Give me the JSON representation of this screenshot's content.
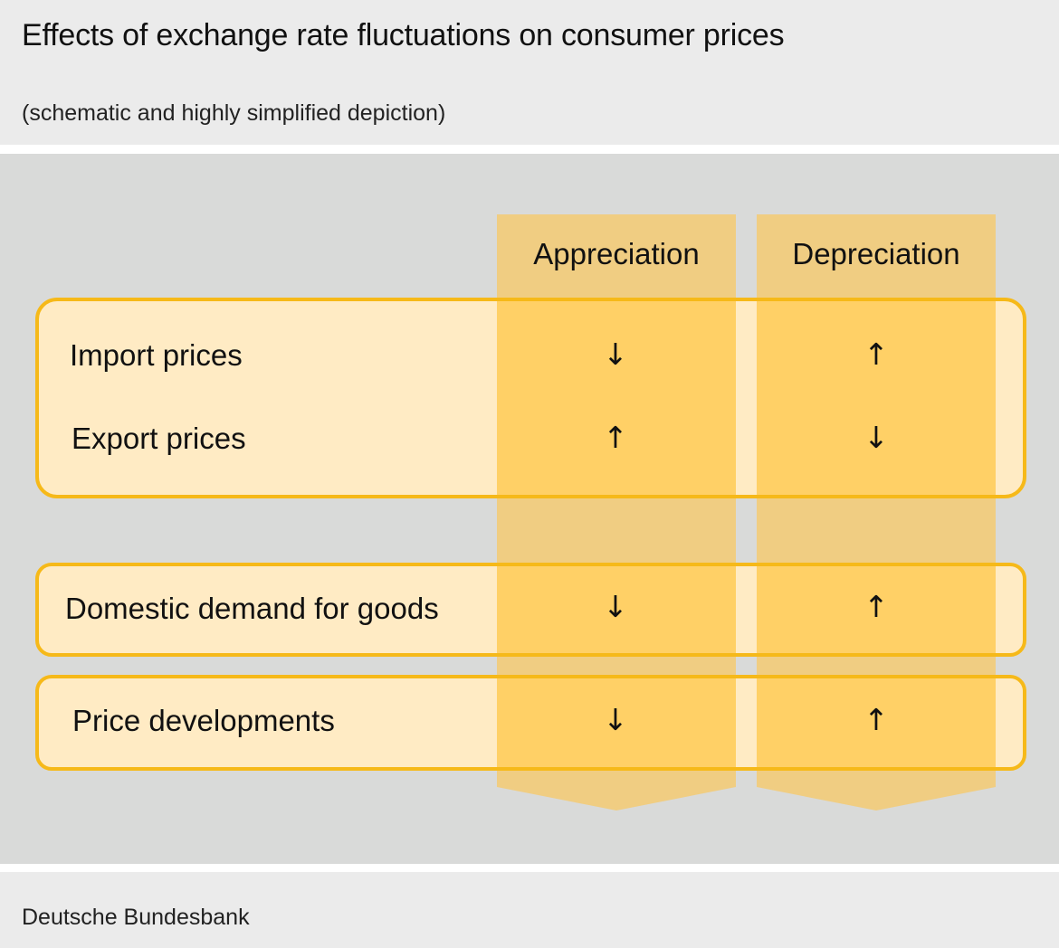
{
  "header": {
    "title": "Effects of exchange rate fluctuations on consumer prices",
    "subtitle": "(schematic and highly simplified depiction)"
  },
  "columns": [
    "Appreciation",
    "Depreciation"
  ],
  "rows": [
    {
      "label": "Import prices",
      "appreciation": "↓",
      "depreciation": "↑"
    },
    {
      "label": "Export prices",
      "appreciation": "↑",
      "depreciation": "↓"
    },
    {
      "label": "Domestic demand for goods",
      "appreciation": "↓",
      "depreciation": "↑"
    },
    {
      "label": "Price developments",
      "appreciation": "↓",
      "depreciation": "↑"
    }
  ],
  "footer": {
    "source": "Deutsche Bundesbank"
  },
  "colors": {
    "header_bg": "#ebebeb",
    "panel_bg": "#d9dad9",
    "column_fill": "#f0cd82",
    "box_fill": "#ffebc4",
    "box_border": "#f6b919",
    "overlap_fill": "#ffd066"
  }
}
